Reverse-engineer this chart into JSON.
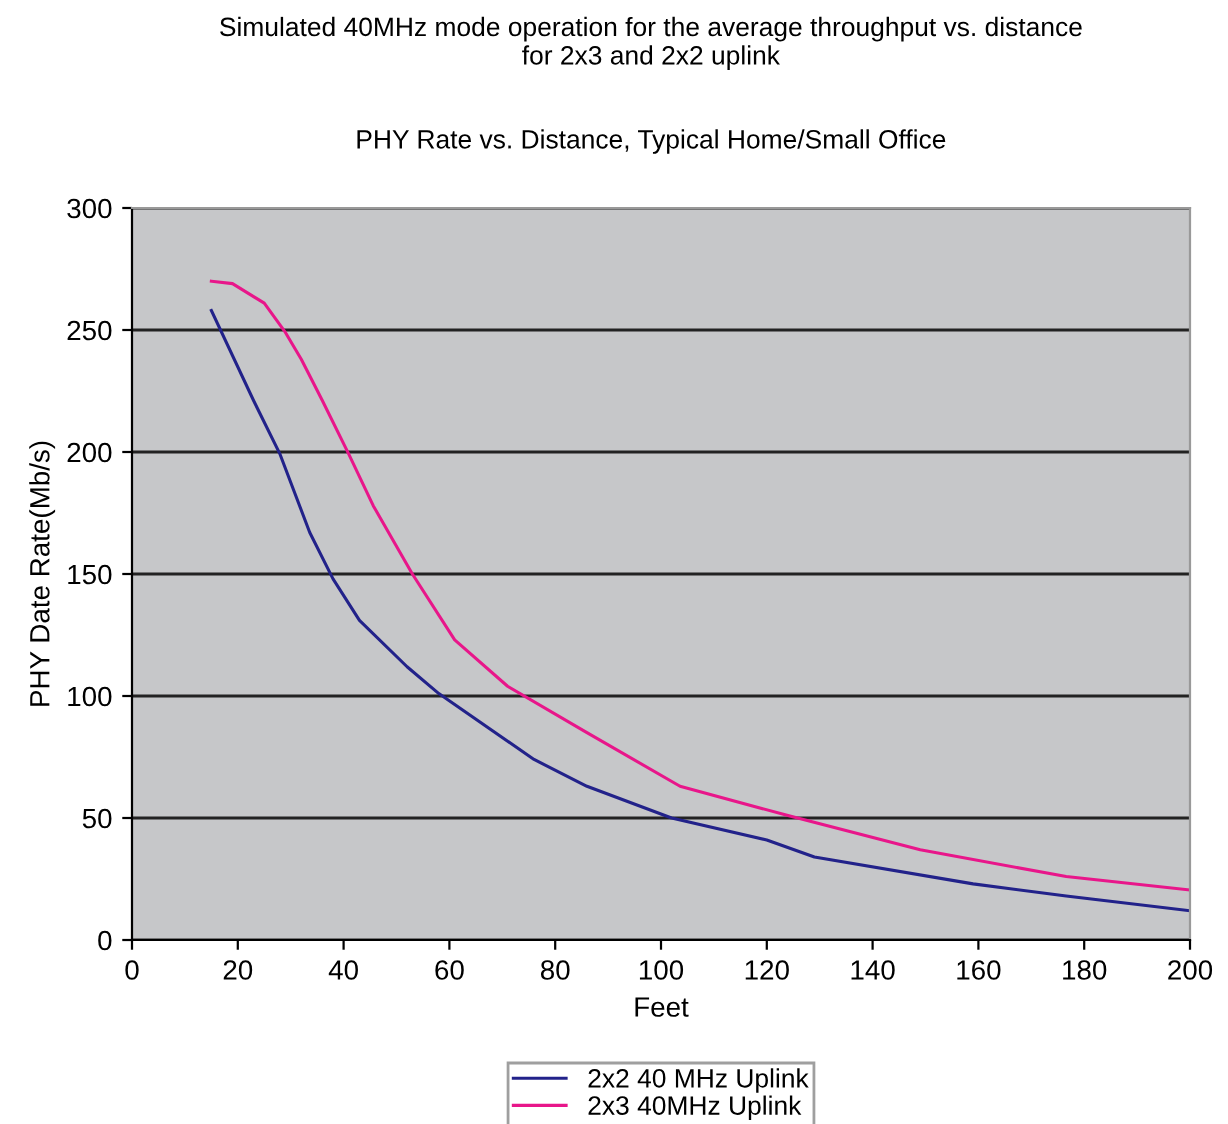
{
  "chart_data": {
    "type": "line",
    "title": "Simulated 40MHz mode operation for the average throughput vs. distance\nfor 2x3 and 2x2 uplink",
    "subtitle": "PHY Rate vs. Distance, Typical Home/Small Office",
    "xlabel": "Feet",
    "ylabel": "PHY Date Rate(Mb/s)",
    "xlim": [
      0,
      200
    ],
    "ylim": [
      0,
      300
    ],
    "xticks": [
      0,
      20,
      40,
      60,
      80,
      100,
      120,
      140,
      160,
      180,
      200
    ],
    "yticks": [
      0,
      50,
      100,
      150,
      200,
      250,
      300
    ],
    "grid": "y",
    "legend": "bottom",
    "marker": "none",
    "line_style": "solid",
    "series": [
      {
        "name": "2x2 40 MHz Uplink",
        "color": "#22228a",
        "x": [
          15,
          23,
          28,
          33.6,
          38,
          43,
          52,
          58,
          76,
          86,
          102,
          120,
          129,
          159,
          176.6,
          200
        ],
        "values": [
          258,
          221,
          199,
          167,
          148,
          131,
          112,
          101,
          74,
          63,
          50,
          41,
          34,
          23,
          18,
          12
        ]
      },
      {
        "name": "2x3 40MHz Uplink",
        "color": "#e8168a",
        "x": [
          15,
          19,
          25,
          29,
          32,
          36,
          41,
          45.6,
          53,
          61,
          71,
          86,
          103.6,
          124,
          149,
          176.6,
          200
        ],
        "values": [
          270,
          269,
          261,
          249,
          238,
          221,
          199,
          178,
          150,
          123,
          104,
          85,
          63,
          51,
          37,
          26,
          20.5
        ]
      }
    ]
  }
}
